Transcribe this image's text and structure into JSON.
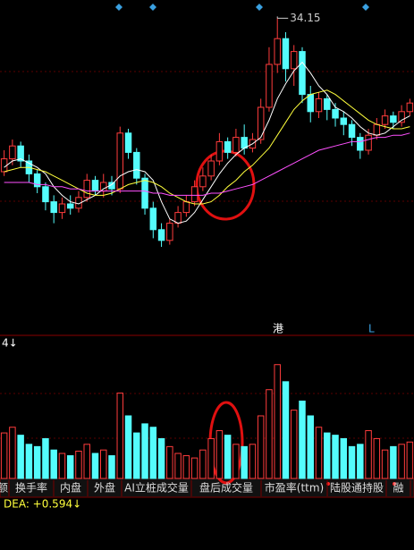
{
  "chart_data": {
    "type": "candlestick",
    "ylim": [
      20,
      35
    ],
    "open": [
      27.0,
      27.6,
      28.2,
      27.5,
      26.9,
      26.3,
      25.6,
      25.1,
      25.5,
      25.3,
      25.8,
      26.6,
      26.1,
      26.5,
      26.2,
      28.8,
      27.9,
      26.7,
      25.3,
      24.3,
      23.8,
      24.6,
      25.1,
      25.6,
      26.3,
      26.8,
      27.5,
      28.4,
      27.9,
      28.6,
      28.1,
      28.5,
      30.0,
      32.0,
      33.2,
      31.8,
      32.6,
      30.6,
      29.8,
      30.4,
      29.9,
      29.5,
      29.2,
      28.6,
      28.0,
      28.7,
      29.2,
      29.6,
      29.3,
      29.8
    ],
    "high": [
      28.0,
      28.5,
      28.4,
      27.8,
      27.1,
      26.5,
      25.9,
      25.8,
      25.9,
      26.1,
      26.9,
      26.8,
      26.9,
      26.8,
      29.1,
      29.0,
      28.1,
      26.9,
      25.6,
      24.6,
      24.8,
      25.4,
      25.9,
      26.6,
      27.2,
      27.8,
      28.8,
      28.6,
      29.0,
      29.2,
      28.8,
      30.4,
      32.8,
      34.15,
      33.5,
      32.9,
      32.8,
      31.0,
      30.7,
      30.6,
      30.2,
      29.8,
      29.4,
      28.8,
      29.0,
      29.5,
      29.9,
      29.8,
      30.1,
      30.4
    ],
    "low": [
      26.8,
      27.3,
      27.2,
      26.5,
      26.0,
      25.2,
      24.6,
      24.8,
      25.0,
      25.1,
      25.6,
      25.9,
      25.8,
      25.9,
      26.0,
      27.6,
      26.4,
      25.0,
      23.9,
      23.5,
      23.6,
      24.4,
      24.9,
      25.4,
      26.1,
      26.6,
      27.3,
      27.6,
      27.7,
      27.8,
      27.9,
      28.3,
      29.8,
      31.6,
      31.2,
      31.0,
      30.2,
      29.3,
      29.5,
      29.4,
      29.1,
      28.7,
      28.2,
      27.6,
      27.8,
      28.5,
      29.0,
      29.0,
      29.1,
      29.6
    ],
    "close": [
      27.6,
      28.2,
      27.5,
      26.9,
      26.3,
      25.6,
      25.1,
      25.5,
      25.3,
      25.8,
      26.6,
      26.1,
      26.5,
      26.2,
      28.8,
      27.9,
      26.7,
      25.3,
      24.3,
      23.8,
      24.6,
      25.1,
      25.6,
      26.3,
      26.8,
      27.5,
      28.4,
      27.9,
      28.6,
      28.1,
      28.5,
      30.0,
      32.0,
      33.2,
      31.8,
      32.6,
      30.6,
      29.8,
      30.4,
      29.9,
      29.5,
      29.2,
      28.6,
      28.0,
      28.7,
      29.2,
      29.6,
      29.3,
      29.8,
      30.2
    ],
    "up_color": "#ff3c3c",
    "down_color": "#54fcfc",
    "lines": [
      {
        "color": "#ffffff",
        "values": [
          27.2,
          27.5,
          27.6,
          27.4,
          27.2,
          26.9,
          26.3,
          25.9,
          25.6,
          25.5,
          25.7,
          25.9,
          26.2,
          26.4,
          26.8,
          27.0,
          27.1,
          27.0,
          26.6,
          25.6,
          24.8,
          24.6,
          24.7,
          25.1,
          25.7,
          26.3,
          26.9,
          27.4,
          27.8,
          28.1,
          28.3,
          28.6,
          29.4,
          30.4,
          31.1,
          31.7,
          32.1,
          31.6,
          31.0,
          30.6,
          30.0,
          29.8,
          29.5,
          29.1,
          28.8,
          28.7,
          28.8,
          29.1,
          29.4,
          29.6
        ]
      },
      {
        "color": "#ffff3c",
        "values": [
          27.0,
          27.1,
          27.2,
          27.2,
          27.1,
          27.0,
          26.8,
          26.6,
          26.4,
          26.2,
          26.0,
          25.9,
          25.9,
          26.0,
          26.2,
          26.4,
          26.5,
          26.6,
          26.5,
          26.3,
          26.0,
          25.8,
          25.6,
          25.5,
          25.5,
          25.6,
          25.9,
          26.3,
          26.6,
          27.0,
          27.3,
          27.7,
          28.1,
          28.7,
          29.3,
          29.9,
          30.3,
          30.6,
          30.7,
          30.8,
          30.6,
          30.3,
          30.0,
          29.7,
          29.4,
          29.2,
          29.1,
          29.0,
          29.0,
          29.1
        ]
      },
      {
        "color": "#ff50ff",
        "values": [
          26.5,
          26.5,
          26.5,
          26.5,
          26.4,
          26.4,
          26.3,
          26.3,
          26.2,
          26.2,
          26.1,
          26.1,
          26.1,
          26.1,
          26.1,
          26.1,
          26.1,
          26.1,
          26.0,
          26.0,
          25.9,
          25.9,
          25.9,
          25.9,
          25.9,
          26.0,
          26.0,
          26.1,
          26.2,
          26.3,
          26.4,
          26.6,
          26.8,
          27.0,
          27.2,
          27.4,
          27.6,
          27.8,
          28.0,
          28.1,
          28.2,
          28.3,
          28.4,
          28.4,
          28.5,
          28.6,
          28.6,
          28.7,
          28.7,
          28.8
        ]
      }
    ],
    "volume": [
      40,
      45,
      38,
      30,
      28,
      35,
      25,
      22,
      20,
      24,
      30,
      22,
      25,
      20,
      75,
      55,
      40,
      48,
      45,
      35,
      28,
      22,
      20,
      18,
      25,
      35,
      42,
      38,
      30,
      28,
      30,
      55,
      78,
      100,
      85,
      60,
      68,
      55,
      45,
      40,
      38,
      35,
      28,
      30,
      42,
      35,
      25,
      28,
      30,
      32
    ],
    "volume_ylim": [
      0,
      110
    ],
    "markers": [
      "港",
      "L"
    ],
    "volume_label": "4↓",
    "dea_label": "DEA: +0.594↓"
  },
  "tabs": [
    "额",
    "换手率",
    "内盘",
    "外盘",
    "AI立桩成交量",
    "盘后成交量",
    "市盈率(ttm)",
    "陆股通持股",
    "融"
  ]
}
